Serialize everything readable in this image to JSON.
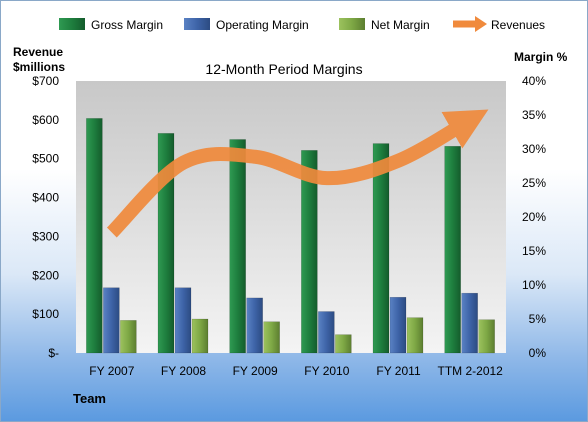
{
  "chart_data": {
    "type": "bar",
    "title": "12-Month Period Margins",
    "categories": [
      "FY 2007",
      "FY 2008",
      "FY 2009",
      "FY 2010",
      "FY 2011",
      "TTM 2-2012"
    ],
    "series": [
      {
        "name": "Gross Margin",
        "axis": "right",
        "values": [
          34.5,
          32.3,
          31.4,
          29.8,
          30.8,
          30.4
        ],
        "color": "#1e7e3e"
      },
      {
        "name": "Operating Margin",
        "axis": "right",
        "values": [
          9.6,
          9.6,
          8.1,
          6.1,
          8.2,
          8.8
        ],
        "color": "#3e64a8"
      },
      {
        "name": "Net Margin",
        "axis": "right",
        "values": [
          4.8,
          5.0,
          4.6,
          2.7,
          5.2,
          4.9
        ],
        "color": "#7ea845"
      },
      {
        "name": "Revenues",
        "axis": "left",
        "type": "line",
        "values": [
          310,
          490,
          505,
          450,
          495,
          600
        ],
        "color": "#f08a3c"
      }
    ],
    "left_axis": {
      "label_line1": "Revenue",
      "label_line2": "$millions",
      "ticks": [
        "$-",
        "$100",
        "$200",
        "$300",
        "$400",
        "$500",
        "$600",
        "$700"
      ],
      "ylim": [
        0,
        700
      ]
    },
    "right_axis": {
      "label": "Margin %",
      "ticks": [
        "0%",
        "5%",
        "10%",
        "15%",
        "20%",
        "25%",
        "30%",
        "35%",
        "40%"
      ],
      "ylim": [
        0,
        40
      ]
    },
    "x_axis_label": "Team",
    "legend_position": "top",
    "grid": false
  }
}
